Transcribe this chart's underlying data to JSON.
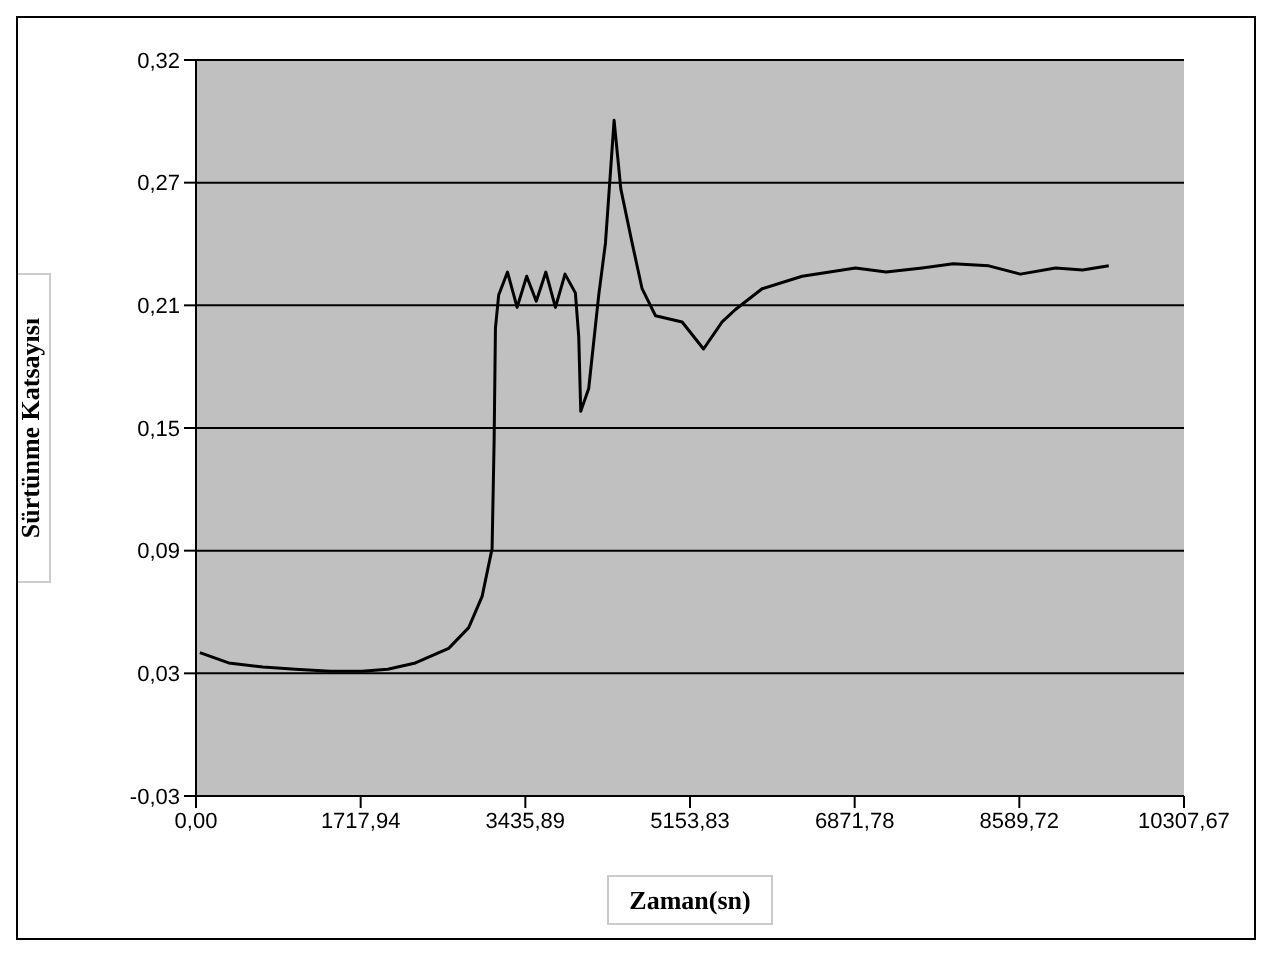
{
  "chart_data": {
    "type": "line",
    "xlabel": "Zaman(sn)",
    "ylabel": "Sürtünme Katsayısı",
    "xlim": [
      0,
      10307.67
    ],
    "xticks": [
      {
        "value": 0,
        "label": "0,00"
      },
      {
        "value": 1717.94,
        "label": "1717,94"
      },
      {
        "value": 3435.89,
        "label": "3435,89"
      },
      {
        "value": 5153.83,
        "label": "5153,83"
      },
      {
        "value": 6871.78,
        "label": "6871,78"
      },
      {
        "value": 8589.72,
        "label": "8589,72"
      },
      {
        "value": 10307.67,
        "label": "10307,67"
      }
    ],
    "ylim": [
      -0.03,
      0.324
    ],
    "yticks": [
      {
        "value": -0.03,
        "label": "-0,03"
      },
      {
        "value": 0.029,
        "label": "0,03"
      },
      {
        "value": 0.088,
        "label": "0,09"
      },
      {
        "value": 0.147,
        "label": "0,15"
      },
      {
        "value": 0.206,
        "label": "0,21"
      },
      {
        "value": 0.265,
        "label": "0,27"
      },
      {
        "value": 0.324,
        "label": "0,32"
      }
    ],
    "grid": "y",
    "marker": "none",
    "line_style": "solid",
    "series": [
      {
        "color": "#000000",
        "x": [
          40,
          341,
          700,
          1037,
          1400,
          1732,
          2000,
          2289,
          2636,
          2845,
          2985,
          3089,
          3110,
          3124,
          3158,
          3250,
          3350,
          3450,
          3550,
          3650,
          3750,
          3850,
          3958,
          3993,
          4014,
          4097,
          4202,
          4272,
          4362,
          4432,
          4550,
          4654,
          4794,
          5072,
          5295,
          5489,
          5628,
          5906,
          6324,
          6880,
          7200,
          7576,
          7900,
          8271,
          8600,
          8968,
          9250,
          9523
        ],
        "values": [
          0.039,
          0.034,
          0.032,
          0.031,
          0.03,
          0.03,
          0.031,
          0.034,
          0.041,
          0.051,
          0.066,
          0.089,
          0.14,
          0.195,
          0.211,
          0.222,
          0.205,
          0.22,
          0.208,
          0.222,
          0.205,
          0.221,
          0.212,
          0.191,
          0.155,
          0.166,
          0.211,
          0.236,
          0.295,
          0.262,
          0.236,
          0.214,
          0.201,
          0.198,
          0.185,
          0.198,
          0.204,
          0.214,
          0.22,
          0.224,
          0.222,
          0.224,
          0.226,
          0.225,
          0.221,
          0.224,
          0.223,
          0.225
        ]
      }
    ]
  }
}
